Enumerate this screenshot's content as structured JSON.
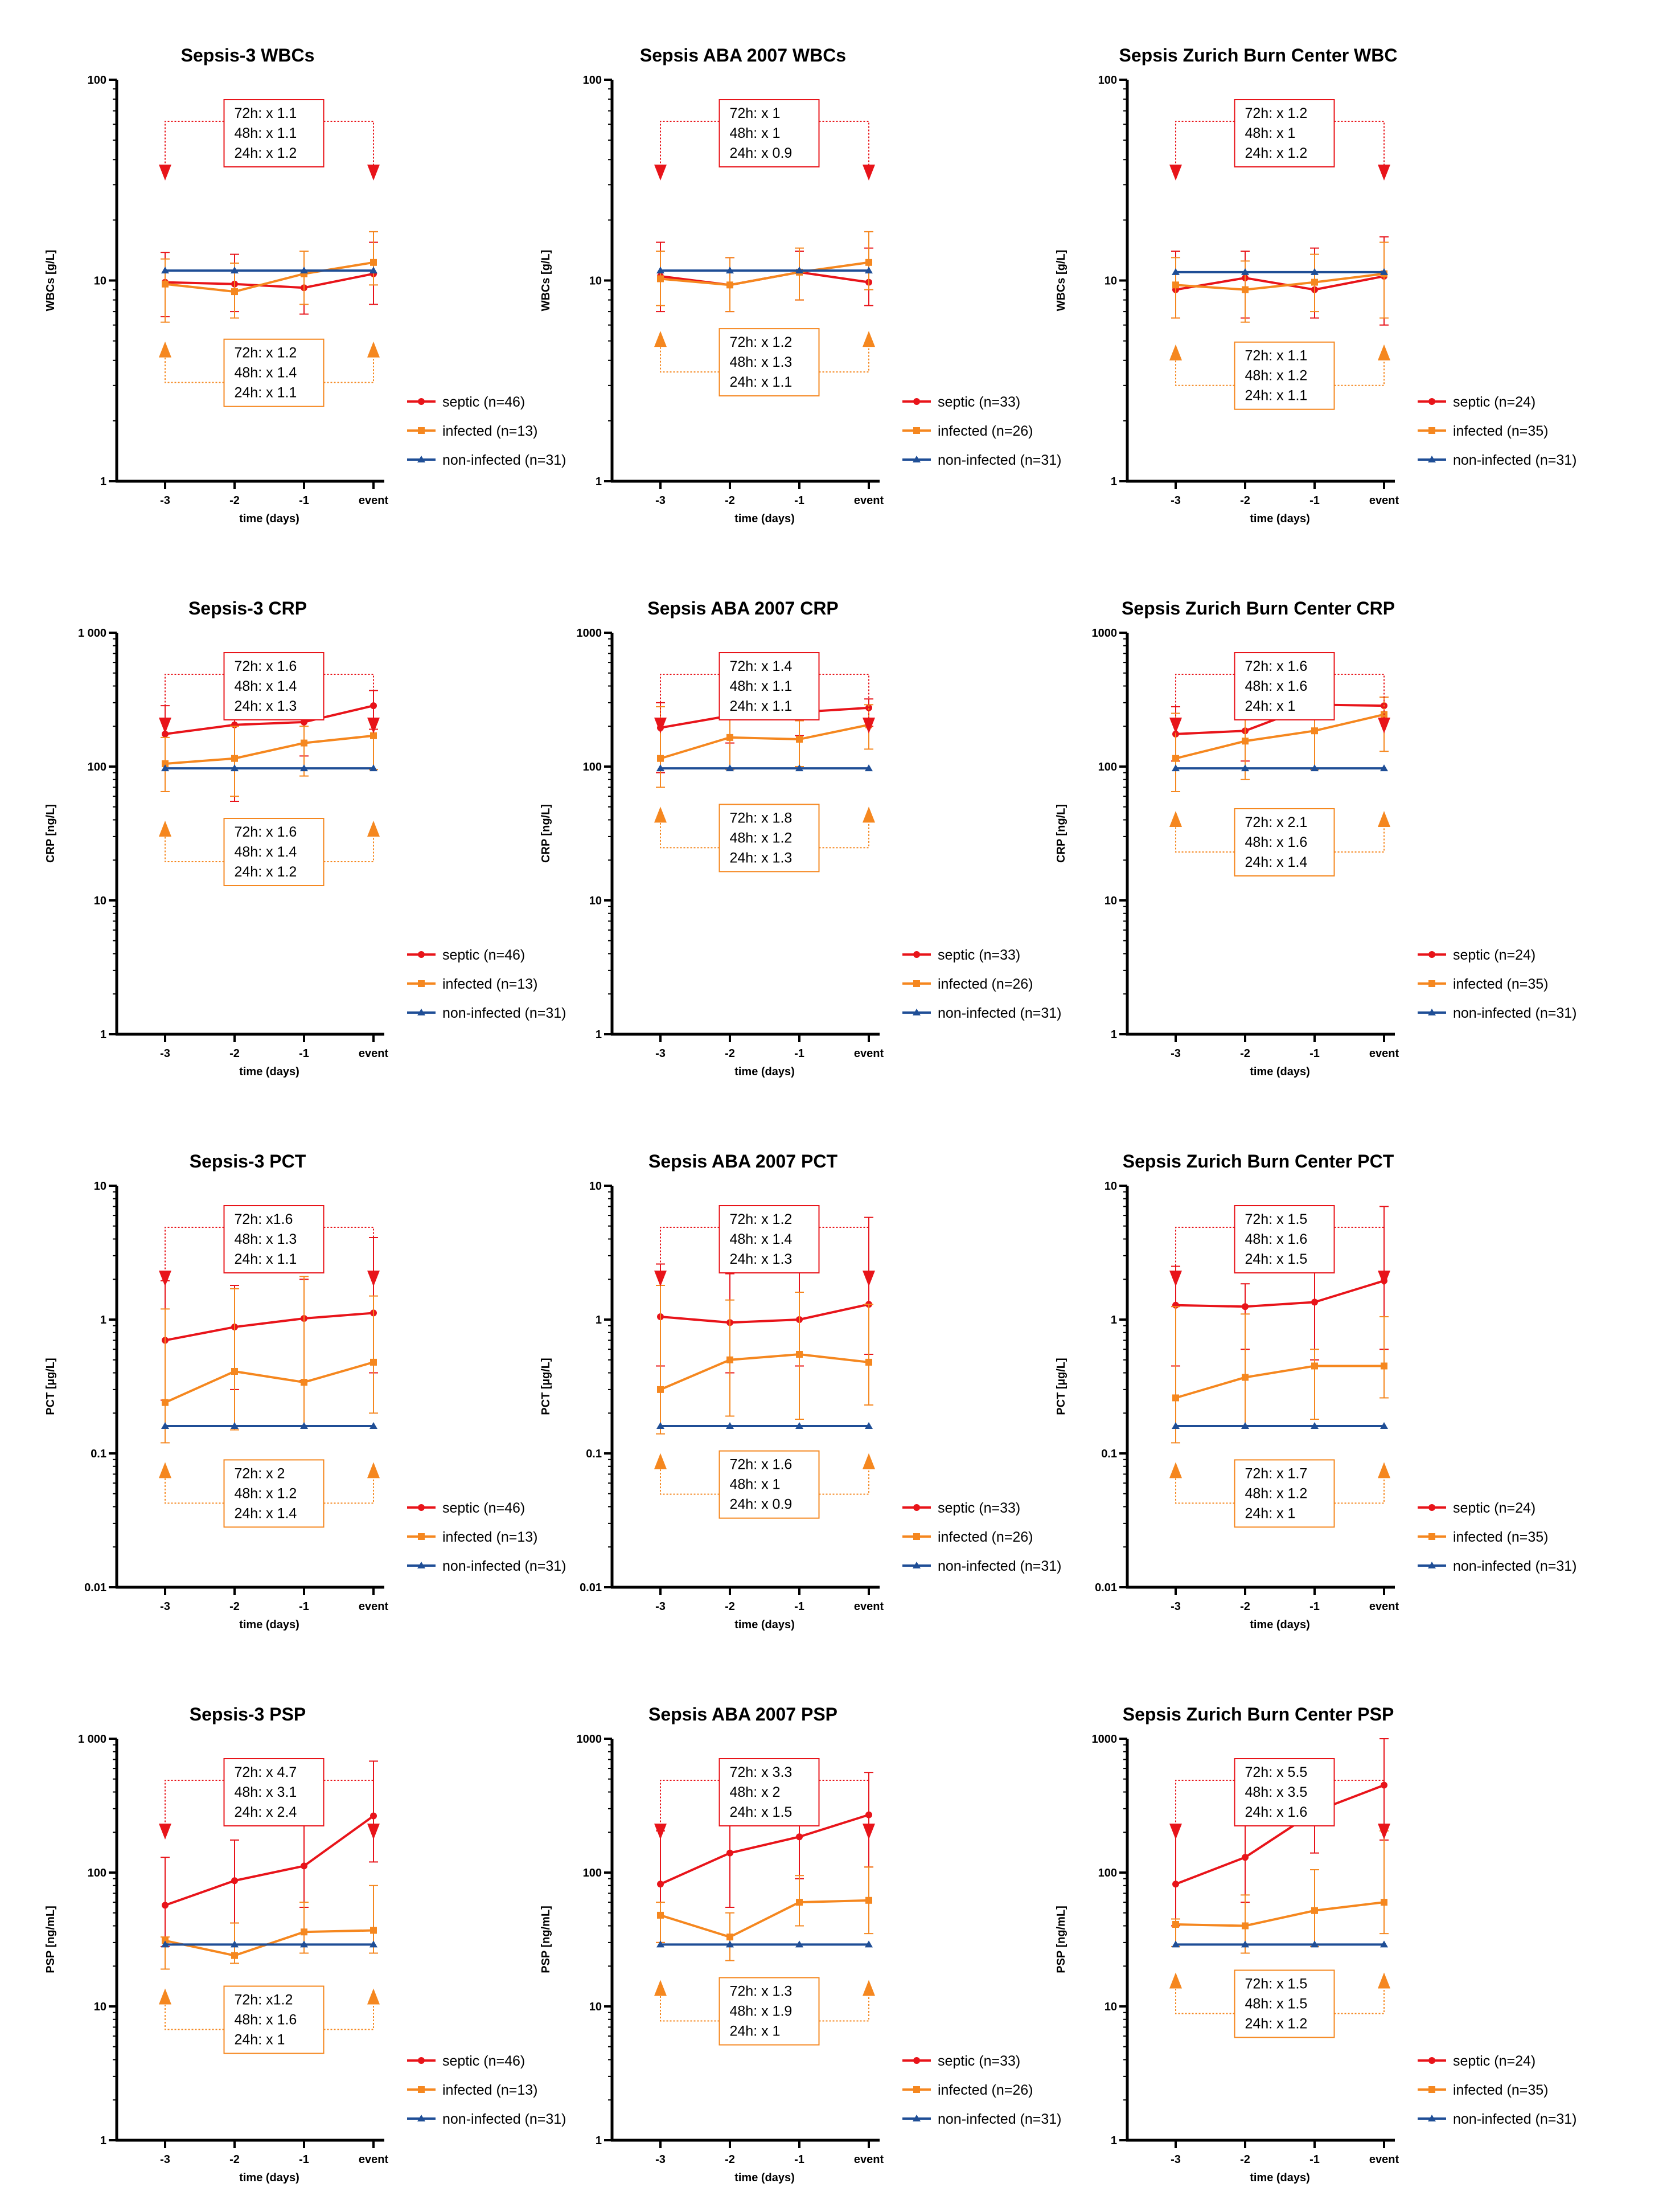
{
  "colors": {
    "septic": "#e8141a",
    "infected": "#f5871f",
    "noninfected": "#1f4e96"
  },
  "chart_data": [
    {
      "type": "line",
      "title": "Sepsis-3  WBCs",
      "ylabel": "WBCs [g/L]",
      "xlabel": "time (days)",
      "yscale": "log",
      "ylim": [
        1,
        100
      ],
      "yticks": [
        "1",
        "10",
        "100"
      ],
      "categories": [
        "-3",
        "-2",
        "-1",
        "event"
      ],
      "series": [
        {
          "name": "septic",
          "legend": "septic (n=46)",
          "values": [
            9.8,
            9.6,
            9.2,
            10.8
          ],
          "err_low": [
            6.6,
            7.0,
            6.8,
            7.6
          ],
          "err_high": [
            13.8,
            13.5,
            14.0,
            15.5
          ]
        },
        {
          "name": "infected",
          "legend": "infected (n=13)",
          "values": [
            9.6,
            8.8,
            10.8,
            12.3
          ],
          "err_low": [
            6.2,
            6.5,
            7.6,
            9.5
          ],
          "err_high": [
            12.8,
            12.2,
            14.0,
            17.5
          ]
        },
        {
          "name": "noninfected",
          "legend": "non-infected (n=31)",
          "values": [
            11.2,
            11.2,
            11.2,
            11.2
          ]
        }
      ],
      "top_box": [
        "72h: x 1.1",
        "48h: x 1.1",
        "24h: x 1.2"
      ],
      "bottom_box": [
        "72h: x 1.2",
        "48h: x 1.4",
        "24h: x 1.1"
      ]
    },
    {
      "type": "line",
      "title": "Sepsis ABA 2007 WBCs",
      "ylabel": "WBCs [g/L]",
      "xlabel": "time (days)",
      "yscale": "log",
      "ylim": [
        1,
        100
      ],
      "yticks": [
        "1",
        "10",
        "100"
      ],
      "categories": [
        "-3",
        "-2",
        "-1",
        "event"
      ],
      "series": [
        {
          "name": "septic",
          "legend": "septic (n=33)",
          "values": [
            10.5,
            9.5,
            11.0,
            9.8
          ],
          "err_low": [
            7.0,
            7.0,
            8.0,
            7.5
          ],
          "err_high": [
            15.5,
            13.0,
            14.0,
            14.5
          ]
        },
        {
          "name": "infected",
          "legend": "infected (n=26)",
          "values": [
            10.2,
            9.5,
            11.0,
            12.3
          ],
          "err_low": [
            7.5,
            7.0,
            8.0,
            9.0
          ],
          "err_high": [
            14.0,
            13.0,
            14.5,
            17.5
          ]
        },
        {
          "name": "noninfected",
          "legend": "non-infected (n=31)",
          "values": [
            11.2,
            11.2,
            11.2,
            11.2
          ]
        }
      ],
      "top_box": [
        "72h: x 1",
        "48h: x 1",
        "24h: x 0.9"
      ],
      "bottom_box": [
        "72h: x 1.2",
        "48h: x 1.3",
        "24h: x 1.1"
      ]
    },
    {
      "type": "line",
      "title": "Sepsis Zurich Burn Center WBC",
      "ylabel": "WBCs [g/L]",
      "xlabel": "time (days)",
      "yscale": "log",
      "ylim": [
        1,
        100
      ],
      "yticks": [
        "1",
        "10",
        "100"
      ],
      "categories": [
        "-3",
        "-2",
        "-1",
        "event"
      ],
      "series": [
        {
          "name": "septic",
          "legend": "septic (n=24)",
          "values": [
            9.0,
            10.3,
            9.0,
            10.5
          ],
          "err_low": [
            6.5,
            6.5,
            6.5,
            6.0
          ],
          "err_high": [
            14.0,
            14.0,
            14.5,
            16.5
          ]
        },
        {
          "name": "infected",
          "legend": "infected (n=35)",
          "values": [
            9.5,
            9.0,
            9.8,
            10.8
          ],
          "err_low": [
            6.5,
            6.2,
            7.0,
            6.5
          ],
          "err_high": [
            13.0,
            12.5,
            13.5,
            15.5
          ]
        },
        {
          "name": "noninfected",
          "legend": "non-infected (n=31)",
          "values": [
            11.0,
            11.0,
            11.0,
            11.0
          ]
        }
      ],
      "top_box": [
        "72h: x 1.2",
        "48h: x 1",
        "24h: x 1.2"
      ],
      "bottom_box": [
        "72h: x 1.1",
        "48h: x 1.2",
        "24h: x 1.1"
      ]
    },
    {
      "type": "line",
      "title": "Sepsis-3 CRP",
      "ylabel": "CRP [ng/L]",
      "xlabel": "time (days)",
      "yscale": "log",
      "ylim": [
        1,
        1000
      ],
      "yticks": [
        "1",
        "10",
        "100",
        "1 000"
      ],
      "categories": [
        "-3",
        "-2",
        "-1",
        "event"
      ],
      "series": [
        {
          "name": "septic",
          "legend": "septic (n=46)",
          "values": [
            175,
            205,
            215,
            285
          ],
          "err_low": [
            65,
            55,
            120,
            190
          ],
          "err_high": [
            285,
            310,
            310,
            370
          ]
        },
        {
          "name": "infected",
          "legend": "infected (n=13)",
          "values": [
            105,
            115,
            150,
            170
          ],
          "err_low": [
            65,
            60,
            85,
            95
          ],
          "err_high": [
            165,
            200,
            200,
            215
          ]
        },
        {
          "name": "noninfected",
          "legend": "non-infected (n=31)",
          "values": [
            97,
            97,
            97,
            97
          ]
        }
      ],
      "top_box": [
        "72h: x 1.6",
        "48h: x 1.4",
        "24h: x 1.3"
      ],
      "bottom_box": [
        "72h: x 1.6",
        "48h: x 1.4",
        "24h: x 1.2"
      ]
    },
    {
      "type": "line",
      "title": "Sepsis ABA 2007 CRP",
      "ylabel": "CRP [ng/L]",
      "xlabel": "time (days)",
      "yscale": "log",
      "ylim": [
        1,
        1000
      ],
      "yticks": [
        "1",
        "10",
        "100",
        "1000"
      ],
      "categories": [
        "-3",
        "-2",
        "-1",
        "event"
      ],
      "series": [
        {
          "name": "septic",
          "legend": "septic (n=33)",
          "values": [
            195,
            240,
            255,
            275
          ],
          "err_low": [
            90,
            150,
            170,
            200
          ],
          "err_high": [
            300,
            320,
            320,
            320
          ]
        },
        {
          "name": "infected",
          "legend": "infected (n=26)",
          "values": [
            115,
            165,
            160,
            205
          ],
          "err_low": [
            70,
            95,
            100,
            135
          ],
          "err_high": [
            280,
            300,
            220,
            290
          ]
        },
        {
          "name": "noninfected",
          "legend": "non-infected (n=31)",
          "values": [
            97,
            97,
            97,
            97
          ]
        }
      ],
      "top_box": [
        "72h: x 1.4",
        "48h: x 1.1",
        "24h: x 1.1"
      ],
      "bottom_box": [
        "72h: x 1.8",
        "48h: x 1.2",
        "24h: x 1.3"
      ]
    },
    {
      "type": "line",
      "title": "Sepsis Zurich Burn Center CRP",
      "ylabel": "CRP [ng/L]",
      "xlabel": "time (days)",
      "yscale": "log",
      "ylim": [
        1,
        1000
      ],
      "yticks": [
        "1",
        "10",
        "100",
        "1000"
      ],
      "categories": [
        "-3",
        "-2",
        "-1",
        "event"
      ],
      "series": [
        {
          "name": "septic",
          "legend": "septic (n=24)",
          "values": [
            175,
            185,
            290,
            285
          ],
          "err_low": [
            110,
            110,
            235,
            220
          ],
          "err_high": [
            280,
            290,
            330,
            330
          ]
        },
        {
          "name": "infected",
          "legend": "infected (n=35)",
          "values": [
            115,
            155,
            185,
            245
          ],
          "err_low": [
            65,
            80,
            95,
            130
          ],
          "err_high": [
            250,
            270,
            290,
            330
          ]
        },
        {
          "name": "noninfected",
          "legend": "non-infected (n=31)",
          "values": [
            97,
            97,
            97,
            97
          ]
        }
      ],
      "top_box": [
        "72h: x 1.6",
        "48h: x 1.6",
        "24h: x 1"
      ],
      "bottom_box": [
        "72h: x 2.1",
        "48h: x 1.6",
        "24h: x 1.4"
      ]
    },
    {
      "type": "line",
      "title": "Sepsis-3 PCT",
      "ylabel": "PCT [µg/L]",
      "xlabel": "time (days)",
      "yscale": "log",
      "ylim": [
        0.01,
        10
      ],
      "yticks": [
        "0.01",
        "0.1",
        "1",
        "10"
      ],
      "categories": [
        "-3",
        "-2",
        "-1",
        "event"
      ],
      "series": [
        {
          "name": "septic",
          "legend": "septic (n=46)",
          "values": [
            0.7,
            0.88,
            1.02,
            1.12
          ],
          "err_low": [
            0.25,
            0.3,
            0.35,
            0.4
          ],
          "err_high": [
            1.95,
            1.8,
            2.0,
            4.1
          ]
        },
        {
          "name": "infected",
          "legend": "infected (n=13)",
          "values": [
            0.24,
            0.41,
            0.34,
            0.48
          ],
          "err_low": [
            0.12,
            0.15,
            0.16,
            0.2
          ],
          "err_high": [
            1.2,
            1.7,
            2.1,
            1.5
          ]
        },
        {
          "name": "noninfected",
          "legend": "non-infected (n=31)",
          "values": [
            0.16,
            0.16,
            0.16,
            0.16
          ]
        }
      ],
      "top_box": [
        "72h: x1.6",
        "48h: x 1.3",
        "24h: x 1.1"
      ],
      "bottom_box": [
        "72h: x 2",
        "48h: x 1.2",
        "24h: x 1.4"
      ]
    },
    {
      "type": "line",
      "title": "Sepsis ABA 2007 PCT",
      "ylabel": "PCT [µg/L]",
      "xlabel": "time (days)",
      "yscale": "log",
      "ylim": [
        0.01,
        10
      ],
      "yticks": [
        "0.01",
        "0.1",
        "1",
        "10"
      ],
      "categories": [
        "-3",
        "-2",
        "-1",
        "event"
      ],
      "series": [
        {
          "name": "septic",
          "legend": "septic (n=33)",
          "values": [
            1.05,
            0.95,
            1.0,
            1.3
          ],
          "err_low": [
            0.45,
            0.4,
            0.45,
            0.55
          ],
          "err_high": [
            2.6,
            2.2,
            3.5,
            5.8
          ]
        },
        {
          "name": "infected",
          "legend": "infected (n=26)",
          "values": [
            0.3,
            0.5,
            0.55,
            0.48
          ],
          "err_low": [
            0.14,
            0.19,
            0.18,
            0.23
          ],
          "err_high": [
            1.8,
            1.4,
            1.6,
            1.3
          ]
        },
        {
          "name": "noninfected",
          "legend": "non-infected (n=31)",
          "values": [
            0.16,
            0.16,
            0.16,
            0.16
          ]
        }
      ],
      "top_box": [
        "72h: x 1.2",
        "48h: x 1.4",
        "24h: x 1.3"
      ],
      "bottom_box": [
        "72h: x 1.6",
        "48h: x 1",
        "24h: x 0.9"
      ]
    },
    {
      "type": "line",
      "title": "Sepsis Zurich Burn Center PCT",
      "ylabel": "PCT [µg/L]",
      "xlabel": "time (days)",
      "yscale": "log",
      "ylim": [
        0.01,
        10
      ],
      "yticks": [
        "0.01",
        "0.1",
        "1",
        "10"
      ],
      "categories": [
        "-3",
        "-2",
        "-1",
        "event"
      ],
      "series": [
        {
          "name": "septic",
          "legend": "septic (n=24)",
          "values": [
            1.28,
            1.25,
            1.35,
            1.95
          ],
          "err_low": [
            0.45,
            0.6,
            0.5,
            0.6
          ],
          "err_high": [
            2.5,
            1.85,
            4.2,
            7.0
          ]
        },
        {
          "name": "infected",
          "legend": "infected (n=35)",
          "values": [
            0.26,
            0.37,
            0.45,
            0.45
          ],
          "err_low": [
            0.12,
            0.16,
            0.18,
            0.26
          ],
          "err_high": [
            1.25,
            1.1,
            0.6,
            1.05
          ]
        },
        {
          "name": "noninfected",
          "legend": "non-infected (n=31)",
          "values": [
            0.16,
            0.16,
            0.16,
            0.16
          ]
        }
      ],
      "top_box": [
        "72h: x 1.5",
        "48h: x 1.6",
        "24h: x 1.5"
      ],
      "bottom_box": [
        "72h: x 1.7",
        "48h: x 1.2",
        "24h: x 1"
      ]
    },
    {
      "type": "line",
      "title": "Sepsis-3 PSP",
      "ylabel": "PSP [ng/mL]",
      "xlabel": "time (days)",
      "yscale": "log",
      "ylim": [
        1,
        1000
      ],
      "yticks": [
        "1",
        "10",
        "100",
        "1 000"
      ],
      "categories": [
        "-3",
        "-2",
        "-1",
        "event"
      ],
      "series": [
        {
          "name": "septic",
          "legend": "septic (n=46)",
          "values": [
            57,
            87,
            112,
            265
          ],
          "err_low": [
            28,
            42,
            55,
            120
          ],
          "err_high": [
            130,
            175,
            285,
            680
          ]
        },
        {
          "name": "infected",
          "legend": "infected (n=13)",
          "values": [
            31,
            24,
            36,
            37
          ],
          "err_low": [
            19,
            21,
            25,
            25
          ],
          "err_high": [
            33,
            42,
            60,
            80
          ]
        },
        {
          "name": "noninfected",
          "legend": "non-infected (n=31)",
          "values": [
            29,
            29,
            29,
            29
          ]
        }
      ],
      "top_box": [
        "72h: x 4.7",
        "48h: x 3.1",
        "24h: x 2.4"
      ],
      "bottom_box": [
        "72h: x1.2",
        "48h: x 1.6",
        "24h: x 1"
      ]
    },
    {
      "type": "line",
      "title": "Sepsis ABA 2007 PSP",
      "ylabel": "PSP [ng/mL]",
      "xlabel": "time (days)",
      "yscale": "log",
      "ylim": [
        1,
        1000
      ],
      "yticks": [
        "1",
        "10",
        "100",
        "1000"
      ],
      "categories": [
        "-3",
        "-2",
        "-1",
        "event"
      ],
      "series": [
        {
          "name": "septic",
          "legend": "septic (n=33)",
          "values": [
            82,
            140,
            185,
            270
          ],
          "err_low": [
            30,
            55,
            90,
            110
          ],
          "err_high": [
            205,
            290,
            340,
            560
          ]
        },
        {
          "name": "infected",
          "legend": "infected (n=26)",
          "values": [
            48,
            33,
            60,
            62
          ],
          "err_low": [
            30,
            22,
            40,
            35
          ],
          "err_high": [
            60,
            50,
            95,
            110
          ]
        },
        {
          "name": "noninfected",
          "legend": "non-infected (n=31)",
          "values": [
            29,
            29,
            29,
            29
          ]
        }
      ],
      "top_box": [
        "72h: x 3.3",
        "48h: x 2",
        "24h: x 1.5"
      ],
      "bottom_box": [
        "72h: x 1.3",
        "48h: x 1.9",
        "24h: x 1"
      ]
    },
    {
      "type": "line",
      "title": "Sepsis Zurich Burn Center PSP",
      "ylabel": "PSP [ng/mL]",
      "xlabel": "time (days)",
      "yscale": "log",
      "ylim": [
        1,
        1000
      ],
      "yticks": [
        "1",
        "10",
        "100",
        "1000"
      ],
      "categories": [
        "-3",
        "-2",
        "-1",
        "event"
      ],
      "series": [
        {
          "name": "septic",
          "legend": "septic (n=24)",
          "values": [
            82,
            130,
            285,
            450
          ],
          "err_low": [
            40,
            60,
            140,
            175
          ],
          "err_high": [
            220,
            330,
            470,
            1000
          ]
        },
        {
          "name": "infected",
          "legend": "infected (n=35)",
          "values": [
            41,
            40,
            52,
            60
          ],
          "err_low": [
            28,
            25,
            28,
            35
          ],
          "err_high": [
            45,
            68,
            105,
            205
          ]
        },
        {
          "name": "noninfected",
          "legend": "non-infected (n=31)",
          "values": [
            29,
            29,
            29,
            29
          ]
        }
      ],
      "top_box": [
        "72h: x 5.5",
        "48h: x 3.5",
        "24h: x 1.6"
      ],
      "bottom_box": [
        "72h: x 1.5",
        "48h: x 1.5",
        "24h: x 1.2"
      ]
    }
  ]
}
